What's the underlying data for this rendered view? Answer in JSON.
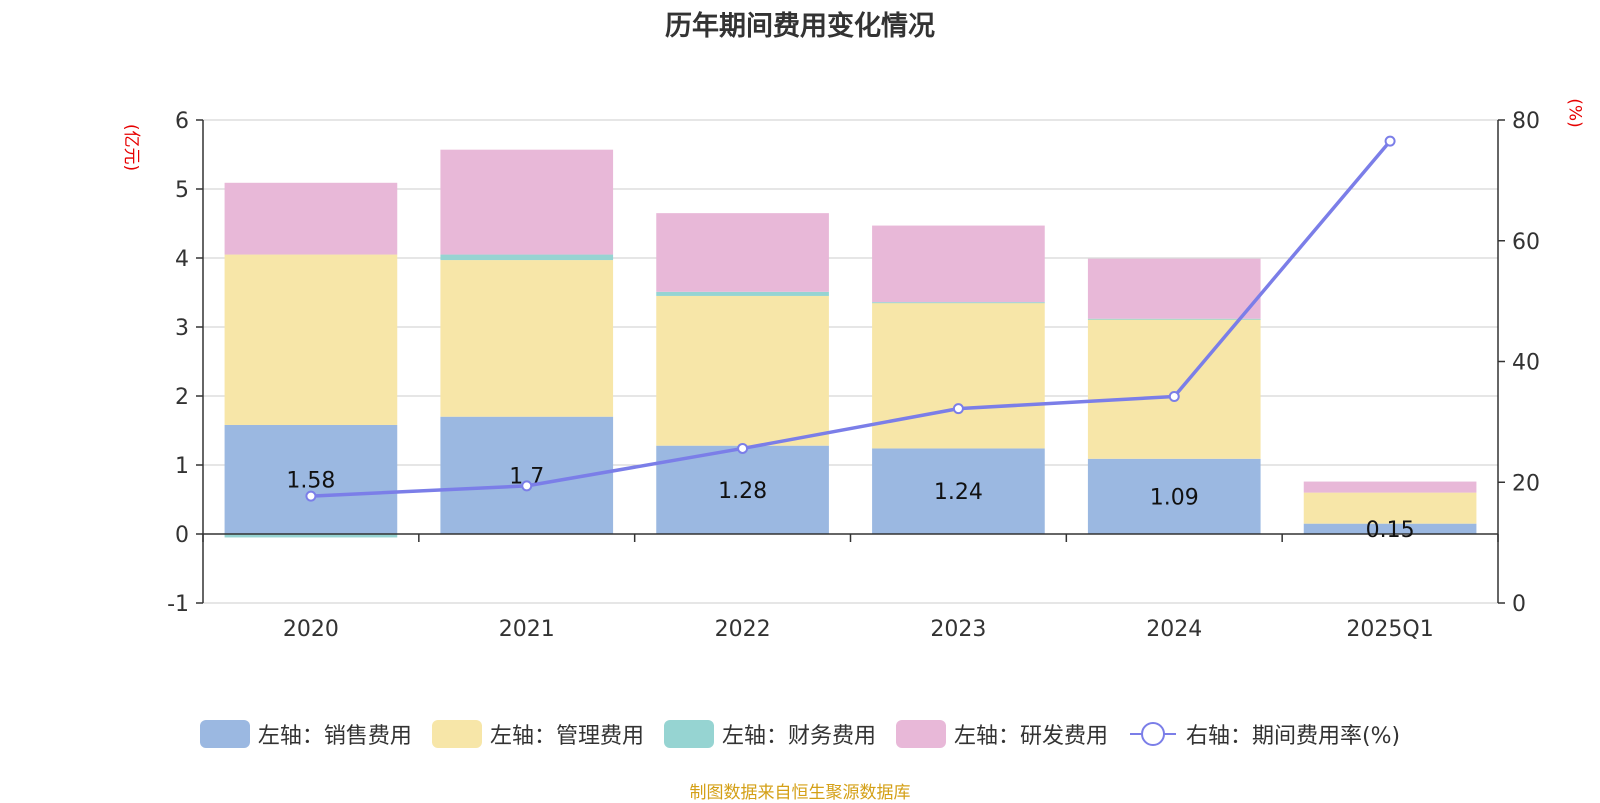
{
  "chart_data": {
    "type": "bar",
    "title": "历年期间费用变化情况",
    "left_unit": "(亿元)",
    "right_unit": "(%)",
    "categories": [
      "2020",
      "2021",
      "2022",
      "2023",
      "2024",
      "2025Q1"
    ],
    "left_axis": {
      "min": -1,
      "max": 6,
      "ticks": [
        -1,
        0,
        1,
        2,
        3,
        4,
        5,
        6
      ]
    },
    "right_axis": {
      "min": 0,
      "max": 80,
      "ticks": [
        0,
        20,
        40,
        60,
        80
      ]
    },
    "series": [
      {
        "name": "左轴：销售费用",
        "axis": "left",
        "kind": "stacked-bar",
        "color": "#9bb8e1",
        "values": [
          1.58,
          1.7,
          1.28,
          1.24,
          1.09,
          0.15
        ],
        "labels": [
          "1.58",
          "1.7",
          "1.28",
          "1.24",
          "1.09",
          "0.15"
        ]
      },
      {
        "name": "左轴：管理费用",
        "axis": "left",
        "kind": "stacked-bar",
        "color": "#f7e6a8",
        "values": [
          2.47,
          2.27,
          2.17,
          2.11,
          2.02,
          0.45
        ]
      },
      {
        "name": "左轴：财务费用",
        "axis": "left",
        "kind": "stacked-bar",
        "color": "#96d4d2",
        "values": [
          -0.05,
          0.08,
          0.06,
          0.01,
          0.01,
          0.0
        ]
      },
      {
        "name": "左轴：研发费用",
        "axis": "left",
        "kind": "stacked-bar",
        "color": "#e8b8d8",
        "values": [
          1.04,
          1.52,
          1.14,
          1.11,
          0.87,
          0.16
        ]
      },
      {
        "name": "右轴：期间费用率(%)",
        "axis": "right",
        "kind": "line",
        "color": "#7b7ee8",
        "values": [
          17.7,
          19.4,
          25.6,
          32.2,
          34.2,
          76.5
        ]
      }
    ]
  },
  "source": "制图数据来自恒生聚源数据库"
}
